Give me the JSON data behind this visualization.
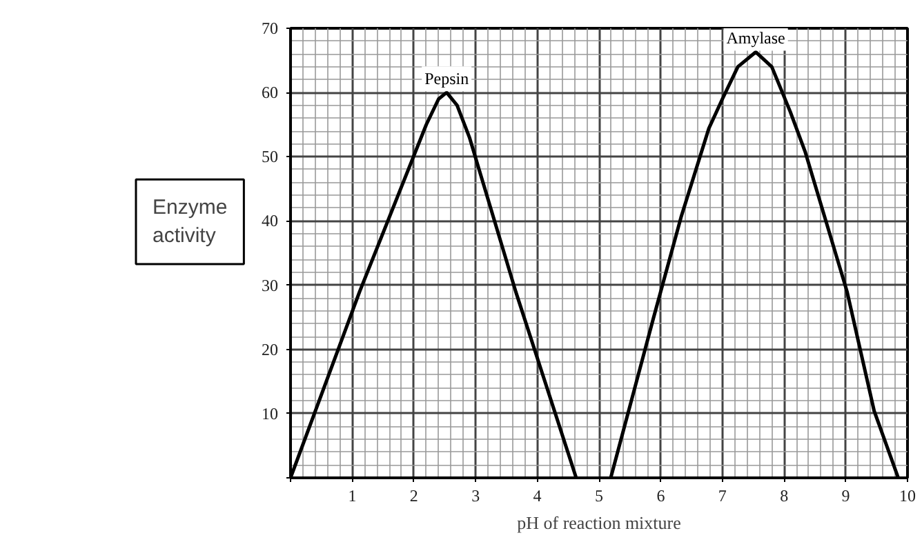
{
  "chart_data": {
    "type": "line",
    "xlabel": "pH of reaction mixture",
    "ylabel": "Enzyme activity",
    "xlim": [
      0,
      10
    ],
    "ylim": [
      0,
      70
    ],
    "xticks": [
      {
        "value": 0,
        "label": null
      },
      1,
      2,
      3,
      4,
      5,
      6,
      7,
      8,
      9,
      10
    ],
    "yticks": [
      {
        "value": 0,
        "label": null
      },
      10,
      20,
      30,
      40,
      50,
      60,
      70
    ],
    "grid": true,
    "marker": "none",
    "line_style": "solid",
    "series": [
      {
        "name": "Pepsin",
        "color": "#000000",
        "x": [
          0,
          1.12,
          2.2,
          2.4,
          2.53,
          2.7,
          2.9,
          3.65,
          4.63
        ],
        "values": [
          0,
          29,
          55,
          59,
          60,
          58,
          53,
          29,
          0
        ]
      },
      {
        "name": "Amylase",
        "color": "#000000",
        "x": [
          5.19,
          5.88,
          6.33,
          6.78,
          7.0,
          7.25,
          7.54,
          7.8,
          8.1,
          8.34,
          9.02,
          9.46,
          9.85
        ],
        "values": [
          0,
          24.8,
          40.6,
          54.4,
          59,
          64,
          66.3,
          64,
          57,
          50.8,
          29,
          10.4,
          0
        ]
      }
    ]
  }
}
